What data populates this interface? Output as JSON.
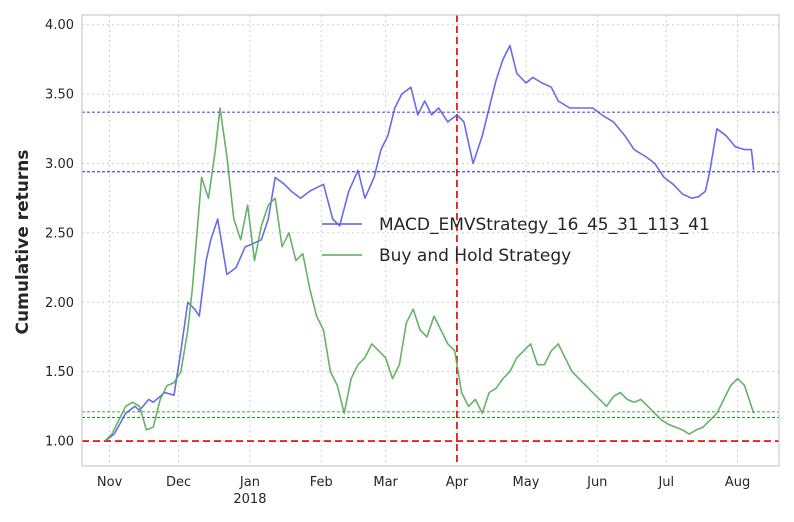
{
  "chart_data": {
    "type": "line",
    "ylabel": "Cumulative returns",
    "xlabel": "",
    "ylim": [
      0.82,
      4.07
    ],
    "xlim": [
      "2017-10-20",
      "2018-08-19"
    ],
    "grid": true,
    "legend_position": "center-right",
    "y_ticks": [
      "1.00",
      "1.50",
      "2.00",
      "2.50",
      "3.00",
      "3.50",
      "4.00"
    ],
    "x_ticks": [
      {
        "date": "2017-11-01",
        "label": "Nov"
      },
      {
        "date": "2017-12-01",
        "label": "Dec"
      },
      {
        "date": "2018-01-01",
        "label": "Jan",
        "sublabel": "2018"
      },
      {
        "date": "2018-02-01",
        "label": "Feb"
      },
      {
        "date": "2018-03-01",
        "label": "Mar"
      },
      {
        "date": "2018-04-01",
        "label": "Apr"
      },
      {
        "date": "2018-05-01",
        "label": "May"
      },
      {
        "date": "2018-06-01",
        "label": "Jun"
      },
      {
        "date": "2018-07-01",
        "label": "Jul"
      },
      {
        "date": "2018-08-01",
        "label": "Aug"
      }
    ],
    "series": [
      {
        "name": "MACD_EMVStrategy_16_45_31_113_41",
        "color": "#5a5ae8",
        "x": [
          "2017-10-30",
          "2017-11-03",
          "2017-11-08",
          "2017-11-12",
          "2017-11-14",
          "2017-11-18",
          "2017-11-20",
          "2017-11-25",
          "2017-11-29",
          "2017-12-02",
          "2017-12-05",
          "2017-12-08",
          "2017-12-10",
          "2017-12-13",
          "2017-12-15",
          "2017-12-18",
          "2017-12-22",
          "2017-12-26",
          "2017-12-30",
          "2018-01-02",
          "2018-01-06",
          "2018-01-09",
          "2018-01-12",
          "2018-01-16",
          "2018-01-19",
          "2018-01-23",
          "2018-01-27",
          "2018-02-02",
          "2018-02-06",
          "2018-02-09",
          "2018-02-13",
          "2018-02-17",
          "2018-02-20",
          "2018-02-24",
          "2018-02-27",
          "2018-03-02",
          "2018-03-05",
          "2018-03-08",
          "2018-03-12",
          "2018-03-15",
          "2018-03-18",
          "2018-03-21",
          "2018-03-24",
          "2018-03-28",
          "2018-04-01",
          "2018-04-04",
          "2018-04-08",
          "2018-04-12",
          "2018-04-15",
          "2018-04-18",
          "2018-04-21",
          "2018-04-24",
          "2018-04-27",
          "2018-05-01",
          "2018-05-04",
          "2018-05-08",
          "2018-05-12",
          "2018-05-15",
          "2018-05-20",
          "2018-05-25",
          "2018-05-30",
          "2018-06-03",
          "2018-06-08",
          "2018-06-13",
          "2018-06-17",
          "2018-06-22",
          "2018-06-26",
          "2018-06-30",
          "2018-07-04",
          "2018-07-08",
          "2018-07-12",
          "2018-07-15",
          "2018-07-18",
          "2018-07-20",
          "2018-07-23",
          "2018-07-27",
          "2018-07-31",
          "2018-08-04",
          "2018-08-07",
          "2018-08-08"
        ],
        "values": [
          1.0,
          1.05,
          1.2,
          1.25,
          1.22,
          1.3,
          1.28,
          1.35,
          1.33,
          1.65,
          2.0,
          1.95,
          1.9,
          2.3,
          2.45,
          2.6,
          2.2,
          2.25,
          2.4,
          2.42,
          2.45,
          2.6,
          2.9,
          2.85,
          2.8,
          2.75,
          2.8,
          2.85,
          2.6,
          2.55,
          2.8,
          2.95,
          2.75,
          2.9,
          3.1,
          3.2,
          3.4,
          3.5,
          3.55,
          3.35,
          3.45,
          3.35,
          3.4,
          3.3,
          3.35,
          3.3,
          3.0,
          3.2,
          3.4,
          3.6,
          3.75,
          3.85,
          3.65,
          3.58,
          3.62,
          3.58,
          3.55,
          3.45,
          3.4,
          3.4,
          3.4,
          3.35,
          3.3,
          3.2,
          3.1,
          3.05,
          3.0,
          2.9,
          2.85,
          2.78,
          2.75,
          2.76,
          2.8,
          2.95,
          3.25,
          3.2,
          3.12,
          3.1,
          3.1,
          2.95
        ]
      },
      {
        "name": "Buy and Hold Strategy",
        "color": "#55aa55",
        "x": [
          "2017-10-30",
          "2017-11-02",
          "2017-11-05",
          "2017-11-08",
          "2017-11-11",
          "2017-11-14",
          "2017-11-17",
          "2017-11-20",
          "2017-11-23",
          "2017-11-26",
          "2017-11-29",
          "2017-12-02",
          "2017-12-05",
          "2017-12-07",
          "2017-12-09",
          "2017-12-11",
          "2017-12-14",
          "2017-12-17",
          "2017-12-19",
          "2017-12-22",
          "2017-12-25",
          "2017-12-28",
          "2017-12-31",
          "2018-01-03",
          "2018-01-06",
          "2018-01-09",
          "2018-01-12",
          "2018-01-15",
          "2018-01-18",
          "2018-01-21",
          "2018-01-24",
          "2018-01-27",
          "2018-01-30",
          "2018-02-02",
          "2018-02-05",
          "2018-02-08",
          "2018-02-11",
          "2018-02-14",
          "2018-02-17",
          "2018-02-20",
          "2018-02-23",
          "2018-02-26",
          "2018-03-01",
          "2018-03-04",
          "2018-03-07",
          "2018-03-10",
          "2018-03-13",
          "2018-03-16",
          "2018-03-19",
          "2018-03-22",
          "2018-03-25",
          "2018-03-28",
          "2018-03-31",
          "2018-04-03",
          "2018-04-06",
          "2018-04-09",
          "2018-04-12",
          "2018-04-15",
          "2018-04-18",
          "2018-04-21",
          "2018-04-24",
          "2018-04-27",
          "2018-04-30",
          "2018-05-03",
          "2018-05-06",
          "2018-05-09",
          "2018-05-12",
          "2018-05-15",
          "2018-05-18",
          "2018-05-21",
          "2018-05-24",
          "2018-05-27",
          "2018-05-30",
          "2018-06-02",
          "2018-06-05",
          "2018-06-08",
          "2018-06-11",
          "2018-06-14",
          "2018-06-17",
          "2018-06-20",
          "2018-06-23",
          "2018-06-26",
          "2018-06-29",
          "2018-07-02",
          "2018-07-05",
          "2018-07-08",
          "2018-07-11",
          "2018-07-14",
          "2018-07-17",
          "2018-07-20",
          "2018-07-23",
          "2018-07-26",
          "2018-07-29",
          "2018-08-01",
          "2018-08-04",
          "2018-08-07",
          "2018-08-08"
        ],
        "values": [
          1.0,
          1.05,
          1.15,
          1.25,
          1.28,
          1.25,
          1.08,
          1.1,
          1.3,
          1.4,
          1.42,
          1.5,
          1.8,
          2.1,
          2.5,
          2.9,
          2.75,
          3.1,
          3.4,
          3.05,
          2.6,
          2.45,
          2.7,
          2.3,
          2.55,
          2.7,
          2.75,
          2.4,
          2.5,
          2.3,
          2.35,
          2.1,
          1.9,
          1.8,
          1.5,
          1.4,
          1.2,
          1.45,
          1.55,
          1.6,
          1.7,
          1.65,
          1.6,
          1.45,
          1.55,
          1.85,
          1.95,
          1.8,
          1.75,
          1.9,
          1.8,
          1.7,
          1.65,
          1.35,
          1.25,
          1.3,
          1.2,
          1.35,
          1.38,
          1.45,
          1.5,
          1.6,
          1.65,
          1.7,
          1.55,
          1.55,
          1.65,
          1.7,
          1.6,
          1.5,
          1.45,
          1.4,
          1.35,
          1.3,
          1.25,
          1.32,
          1.35,
          1.3,
          1.28,
          1.3,
          1.25,
          1.2,
          1.15,
          1.12,
          1.1,
          1.08,
          1.05,
          1.08,
          1.1,
          1.15,
          1.2,
          1.3,
          1.4,
          1.45,
          1.4,
          1.25,
          1.2
        ]
      }
    ],
    "reference_lines": {
      "horizontal": [
        {
          "y": 3.37,
          "color": "#0000cc",
          "style": "dashed"
        },
        {
          "y": 2.94,
          "color": "#0000cc",
          "style": "dashed"
        },
        {
          "y": 1.21,
          "color": "#008800",
          "style": "dashed"
        },
        {
          "y": 1.17,
          "color": "#008800",
          "style": "dashed"
        },
        {
          "y": 1.0,
          "color": "#dd0000",
          "style": "dashed"
        }
      ],
      "vertical": [
        {
          "x": "2018-04-01",
          "color": "#dd0000",
          "style": "dashed"
        }
      ]
    }
  }
}
